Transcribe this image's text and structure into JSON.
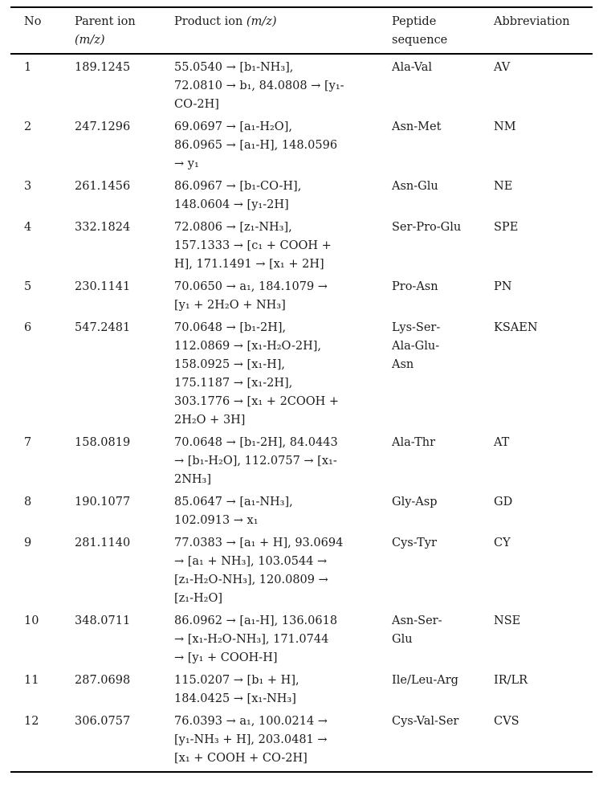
{
  "page": {
    "background": "#ffffff",
    "text_color": "#1b1b1b",
    "rule_color": "#000000"
  },
  "table": {
    "headers": {
      "no": "No",
      "parent_label": "Parent ion",
      "parent_unit": "(m/z)",
      "product_label": "Product ion",
      "product_unit": "(m/z)",
      "peptide_lines": [
        "Peptide",
        "sequence"
      ],
      "abbreviation": "Abbreviation"
    },
    "rows": [
      {
        "no": "1",
        "parent": "189.1245",
        "product_lines": [
          "55.0540 → [b₁-NH₃],",
          "72.0810 → b₁, 84.0808 → [y₁-",
          "CO-2H]"
        ],
        "peptide_lines": [
          "Ala-Val"
        ],
        "abbr": "AV"
      },
      {
        "no": "2",
        "parent": "247.1296",
        "product_lines": [
          "69.0697 → [a₁-H₂O],",
          "86.0965 → [a₁-H], 148.0596",
          "→ y₁"
        ],
        "peptide_lines": [
          "Asn-Met"
        ],
        "abbr": "NM"
      },
      {
        "no": "3",
        "parent": "261.1456",
        "product_lines": [
          "86.0967 → [b₁-CO-H],",
          "148.0604 → [y₁-2H]"
        ],
        "peptide_lines": [
          "Asn-Glu"
        ],
        "abbr": "NE"
      },
      {
        "no": "4",
        "parent": "332.1824",
        "product_lines": [
          "72.0806 → [z₁-NH₃],",
          "157.1333 → [c₁ + COOH +",
          "H], 171.1491 → [x₁ + 2H]"
        ],
        "peptide_lines": [
          "Ser-Pro-Glu"
        ],
        "abbr": "SPE"
      },
      {
        "no": "5",
        "parent": "230.1141",
        "product_lines": [
          "70.0650 → a₁, 184.1079 →",
          "[y₁ + 2H₂O + NH₃]"
        ],
        "peptide_lines": [
          "Pro-Asn"
        ],
        "abbr": "PN"
      },
      {
        "no": "6",
        "parent": "547.2481",
        "product_lines": [
          "70.0648 → [b₁-2H],",
          "112.0869 → [x₁-H₂O-2H],",
          "158.0925 → [x₁-H],",
          "175.1187 → [x₁-2H],",
          "303.1776 → [x₁ + 2COOH +",
          "2H₂O + 3H]"
        ],
        "peptide_lines": [
          "Lys-Ser-",
          "Ala-Glu-",
          "Asn"
        ],
        "abbr": "KSAEN"
      },
      {
        "no": "7",
        "parent": "158.0819",
        "product_lines": [
          "70.0648 → [b₁-2H], 84.0443",
          "→ [b₁-H₂O], 112.0757 → [x₁-",
          "2NH₃]"
        ],
        "peptide_lines": [
          "Ala-Thr"
        ],
        "abbr": "AT"
      },
      {
        "no": "8",
        "parent": "190.1077",
        "product_lines": [
          "85.0647 → [a₁-NH₃],",
          "102.0913 → x₁"
        ],
        "peptide_lines": [
          "Gly-Asp"
        ],
        "abbr": "GD"
      },
      {
        "no": "9",
        "parent": "281.1140",
        "product_lines": [
          "77.0383 → [a₁ + H], 93.0694",
          "→ [a₁ + NH₃], 103.0544 →",
          "[z₁-H₂O-NH₃], 120.0809 →",
          "[z₁-H₂O]"
        ],
        "peptide_lines": [
          "Cys-Tyr"
        ],
        "abbr": "CY"
      },
      {
        "no": "10",
        "parent": "348.0711",
        "product_lines": [
          "86.0962 → [a₁-H], 136.0618",
          "→ [x₁-H₂O-NH₃], 171.0744",
          "→ [y₁ + COOH-H]"
        ],
        "peptide_lines": [
          "Asn-Ser-",
          "Glu"
        ],
        "abbr": "NSE"
      },
      {
        "no": "11",
        "parent": "287.0698",
        "product_lines": [
          "115.0207 → [b₁ + H],",
          "184.0425 → [x₁-NH₃]"
        ],
        "peptide_lines": [
          "Ile/Leu-Arg"
        ],
        "abbr": "IR/LR"
      },
      {
        "no": "12",
        "parent": "306.0757",
        "product_lines": [
          "76.0393 → a₁, 100.0214 →",
          "[y₁-NH₃ + H], 203.0481 →",
          "[x₁ + COOH + CO-2H]"
        ],
        "peptide_lines": [
          "Cys-Val-Ser"
        ],
        "abbr": "CVS"
      }
    ]
  }
}
